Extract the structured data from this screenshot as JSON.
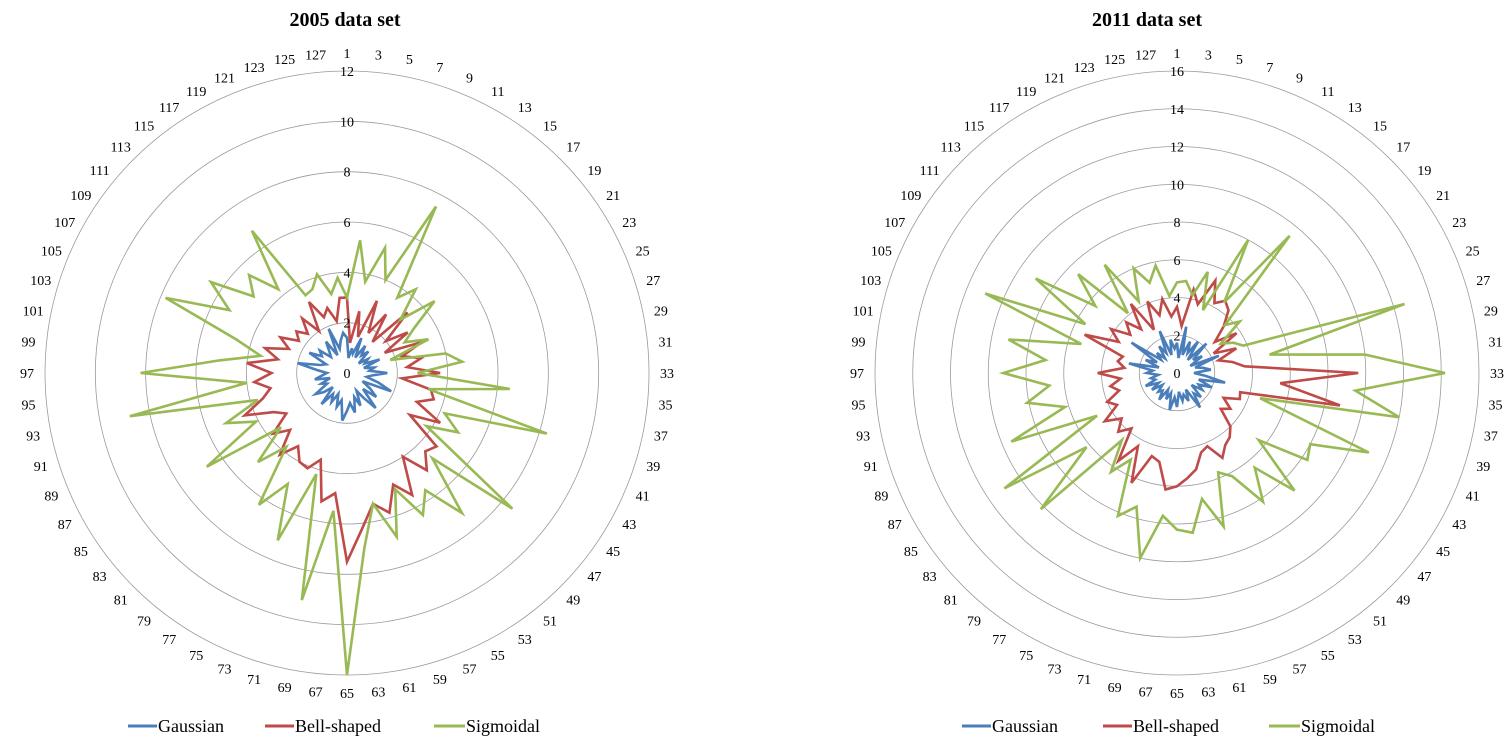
{
  "legend": {
    "gaussian_color": "#4A7EBB",
    "bell_color": "#BE4B48",
    "sigmoidal_color": "#98B954"
  },
  "chart_data": [
    {
      "type": "radar",
      "title": "2005 data set",
      "categories": [
        "1",
        "3",
        "5",
        "7",
        "9",
        "11",
        "13",
        "15",
        "17",
        "19",
        "21",
        "23",
        "25",
        "27",
        "29",
        "31",
        "33",
        "35",
        "37",
        "39",
        "41",
        "43",
        "45",
        "47",
        "49",
        "51",
        "53",
        "55",
        "57",
        "59",
        "61",
        "63",
        "65",
        "67",
        "69",
        "71",
        "73",
        "75",
        "77",
        "79",
        "81",
        "83",
        "85",
        "87",
        "89",
        "91",
        "93",
        "95",
        "97",
        "99",
        "101",
        "103",
        "105",
        "107",
        "109",
        "111",
        "113",
        "115",
        "117",
        "119",
        "121",
        "123",
        "125",
        "127"
      ],
      "rmax": 12,
      "ring_values": [
        0,
        2,
        4,
        6,
        8,
        10,
        12
      ],
      "ring_labels": [
        "0",
        "2",
        "4",
        "6",
        "8",
        "10",
        "12"
      ],
      "series": [
        {
          "name": "Gaussian",
          "color": "#4A7EBB",
          "values": [
            1.4,
            0.6,
            1.0,
            0.8,
            1.5,
            0.7,
            1.3,
            0.9,
            1.2,
            0.6,
            1.0,
            0.8,
            1.4,
            0.7,
            1.1,
            0.9,
            1.6,
            1.0,
            0.8,
            1.3,
            1.9,
            0.7,
            1.1,
            1.5,
            0.9,
            1.8,
            1.2,
            0.8,
            1.4,
            1.0,
            1.6,
            1.2,
            1.5,
            1.9,
            1.1,
            1.4,
            0.9,
            1.3,
            1.0,
            1.6,
            0.8,
            1.2,
            1.5,
            0.9,
            1.1,
            0.7,
            1.3,
            1.0,
            0.8,
            1.2,
            2.0,
            1.1,
            0.9,
            1.7,
            1.2,
            1.4,
            0.9,
            1.1,
            1.5,
            0.8,
            1.9,
            1.0,
            1.3,
            1.6
          ]
        },
        {
          "name": "Bell-shaped",
          "color": "#BE4B48",
          "values": [
            3.0,
            1.2,
            2.5,
            1.5,
            3.1,
            1.8,
            2.8,
            1.6,
            3.4,
            2.0,
            2.9,
            1.7,
            3.2,
            2.3,
            3.0,
            2.4,
            3.7,
            2.2,
            3.4,
            3.6,
            3.0,
            4.2,
            3.0,
            4.6,
            4.4,
            5.0,
            4.0,
            5.5,
            4.8,
            5.8,
            5.3,
            6.2,
            7.5,
            4.8,
            5.2,
            3.6,
            4.1,
            4.0,
            3.5,
            4.2,
            3.2,
            3.8,
            2.9,
            3.3,
            4.4,
            3.5,
            3.1,
            3.7,
            3.0,
            4.0,
            2.8,
            3.4,
            2.5,
            3.0,
            2.3,
            2.6,
            2.2,
            2.8,
            2.0,
            3.2,
            2.4,
            2.7,
            2.1,
            3.0
          ]
        },
        {
          "name": "Sigmoidal",
          "color": "#98B954",
          "values": [
            3.0,
            5.3,
            3.7,
            5.2,
            4.0,
            7.5,
            3.6,
            4.3,
            3.0,
            4.5,
            3.2,
            2.6,
            3.5,
            1.8,
            4.0,
            4.6,
            2.8,
            6.5,
            3.3,
            8.3,
            4.2,
            5.0,
            3.8,
            8.5,
            4.8,
            7.2,
            5.6,
            6.4,
            5.0,
            6.8,
            5.3,
            7.0,
            12.0,
            5.5,
            9.2,
            4.2,
            7.2,
            5.0,
            6.3,
            3.8,
            5.0,
            3.4,
            6.7,
            4.1,
            5.2,
            3.7,
            8.8,
            4.0,
            8.2,
            5.1,
            3.5,
            4.6,
            7.8,
            5.3,
            6.5,
            4.8,
            5.5,
            4.3,
            6.8,
            3.5,
            3.6,
            4.1,
            3.2,
            3.8
          ]
        }
      ]
    },
    {
      "type": "radar",
      "title": "2011 data set",
      "categories": [
        "1",
        "3",
        "5",
        "7",
        "9",
        "11",
        "13",
        "15",
        "17",
        "19",
        "21",
        "23",
        "25",
        "27",
        "29",
        "31",
        "33",
        "35",
        "37",
        "39",
        "41",
        "43",
        "45",
        "47",
        "49",
        "51",
        "53",
        "55",
        "57",
        "59",
        "61",
        "63",
        "65",
        "67",
        "69",
        "71",
        "73",
        "75",
        "77",
        "79",
        "81",
        "83",
        "85",
        "87",
        "89",
        "91",
        "93",
        "95",
        "97",
        "99",
        "101",
        "103",
        "105",
        "107",
        "109",
        "111",
        "113",
        "115",
        "117",
        "119",
        "121",
        "123",
        "125",
        "127"
      ],
      "rmax": 16,
      "ring_values": [
        0,
        2,
        4,
        6,
        8,
        10,
        12,
        14,
        16
      ],
      "ring_labels": [
        "0",
        "2",
        "4",
        "6",
        "8",
        "10",
        "12",
        "14",
        "16"
      ],
      "series": [
        {
          "name": "Gaussian",
          "color": "#4A7EBB",
          "values": [
            1.6,
            0.8,
            2.5,
            1.0,
            1.8,
            1.2,
            2.0,
            0.9,
            2.2,
            1.1,
            1.6,
            0.8,
            2.4,
            1.0,
            1.4,
            1.8,
            0.9,
            1.5,
            2.6,
            1.2,
            2.0,
            1.3,
            1.6,
            1.0,
            1.8,
            1.4,
            2.2,
            1.0,
            1.6,
            1.2,
            1.5,
            1.0,
            1.8,
            1.3,
            2.0,
            1.1,
            1.5,
            1.0,
            1.7,
            1.2,
            1.4,
            1.0,
            1.6,
            1.1,
            1.8,
            1.2,
            1.4,
            1.0,
            1.6,
            1.3,
            2.6,
            1.0,
            1.8,
            1.2,
            2.9,
            1.1,
            1.5,
            1.0,
            1.7,
            1.2,
            2.4,
            1.0,
            1.8,
            1.3
          ]
        },
        {
          "name": "Bell-shaped",
          "color": "#BE4B48",
          "values": [
            3.5,
            2.5,
            4.5,
            3.8,
            5.3,
            4.2,
            4.6,
            4.3,
            3.5,
            2.6,
            3.8,
            2.2,
            3.4,
            2.3,
            3.0,
            3.6,
            9.6,
            5.5,
            8.8,
            3.5,
            3.6,
            2.8,
            3.4,
            3.0,
            4.0,
            4.4,
            4.6,
            5.1,
            4.2,
            4.4,
            5.2,
            5.6,
            6.0,
            6.2,
            4.8,
            4.6,
            6.3,
            4.4,
            5.6,
            3.8,
            4.4,
            3.8,
            4.6,
            3.6,
            4.0,
            3.2,
            3.6,
            3.0,
            4.2,
            2.8,
            3.2,
            3.0,
            5.3,
            3.5,
            4.2,
            3.2,
            3.8,
            3.0,
            4.4,
            2.6,
            4.1,
            3.2,
            4.0,
            3.0
          ]
        },
        {
          "name": "Sigmoidal",
          "color": "#98B954",
          "values": [
            4.8,
            4.9,
            4.2,
            5.6,
            3.6,
            8.0,
            4.5,
            9.4,
            3.6,
            4.3,
            2.8,
            3.4,
            3.8,
            12.6,
            5.0,
            10.0,
            14.2,
            9.5,
            12.0,
            4.6,
            11.0,
            8.0,
            8.3,
            5.6,
            8.8,
            6.5,
            8.2,
            6.2,
            5.7,
            8.5,
            6.8,
            8.5,
            8.3,
            7.6,
            10.0,
            7.4,
            8.2,
            5.2,
            6.3,
            4.6,
            10.2,
            6.2,
            11.0,
            4.8,
            9.5,
            6.2,
            8.1,
            6.8,
            9.2,
            7.0,
            9.1,
            5.3,
            11.0,
            5.5,
            9.0,
            5.6,
            7.4,
            4.1,
            6.9,
            4.3,
            6.0,
            5.0,
            5.8,
            4.1
          ]
        }
      ]
    }
  ]
}
